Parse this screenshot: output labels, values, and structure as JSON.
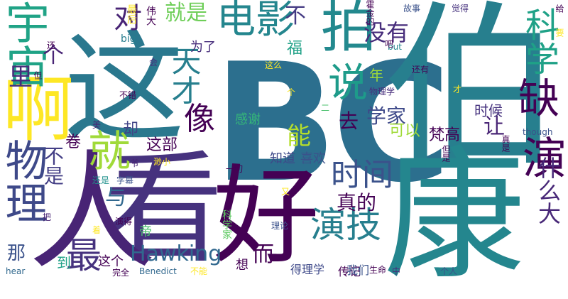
{
  "word_cloud": {
    "background": "#ffffff",
    "palette": [
      "#440154",
      "#46327e",
      "#365c8d",
      "#277f8e",
      "#1fa187",
      "#4ac16d",
      "#a0da39",
      "#fde725"
    ],
    "words": [
      {
        "id": "w1",
        "text": "BC",
        "color": "#2c6f8e"
      },
      {
        "id": "w2",
        "text": "伯",
        "color": "#277f8e"
      },
      {
        "id": "w3",
        "text": "康",
        "color": "#24868e"
      },
      {
        "id": "w4",
        "text": "看",
        "color": "#46327e"
      },
      {
        "id": "w5",
        "text": "好",
        "color": "#440154"
      },
      {
        "id": "w6",
        "text": "人",
        "color": "#482475"
      },
      {
        "id": "w7",
        "text": "这",
        "color": "#2a788e"
      },
      {
        "id": "w8",
        "text": "啊",
        "color": "#fde725"
      },
      {
        "id": "w9",
        "text": "物理",
        "color": "#3e4989"
      },
      {
        "id": "w10",
        "text": "宇宙",
        "color": "#20a386"
      },
      {
        "id": "w11",
        "text": "电影",
        "color": "#24868e"
      },
      {
        "id": "w12",
        "text": "拍",
        "color": "#23898e"
      },
      {
        "id": "w13",
        "text": "演技",
        "color": "#277f8e"
      },
      {
        "id": "w14",
        "text": "演",
        "color": "#440154"
      },
      {
        "id": "w15",
        "text": "缺",
        "color": "#440154"
      },
      {
        "id": "w16",
        "text": "科学",
        "color": "#1fa187"
      },
      {
        "id": "w17",
        "text": "就",
        "color": "#a0da39"
      },
      {
        "id": "w18",
        "text": "时间",
        "color": "#3b528b"
      },
      {
        "id": "w19",
        "text": "说",
        "color": "#1e9b8a"
      },
      {
        "id": "w20",
        "text": "Hawking",
        "color": "#31688e"
      },
      {
        "id": "w21",
        "text": "最",
        "color": "#46327e"
      },
      {
        "id": "w22",
        "text": "像",
        "color": "#440154"
      },
      {
        "id": "w23",
        "text": "天才",
        "color": "#277f8e"
      },
      {
        "id": "w24",
        "text": "对",
        "color": "#482475"
      },
      {
        "id": "w25",
        "text": "就是",
        "color": "#6ece58"
      },
      {
        "id": "w26",
        "text": "不",
        "color": "#443a83"
      },
      {
        "id": "w27",
        "text": "没有",
        "color": "#472d7b"
      },
      {
        "id": "w28",
        "text": "能",
        "color": "#b5de2b"
      },
      {
        "id": "w29",
        "text": "什么大",
        "color": "#482878"
      },
      {
        "id": "w30",
        "text": "让",
        "color": "#482475"
      },
      {
        "id": "w31",
        "text": "与",
        "color": "#31688e"
      },
      {
        "id": "w32",
        "text": "而",
        "color": "#440154"
      },
      {
        "id": "w33",
        "text": "真的",
        "color": "#440154"
      },
      {
        "id": "w34",
        "text": "学家",
        "color": "#3e4989"
      },
      {
        "id": "w35",
        "text": "去",
        "color": "#440154"
      },
      {
        "id": "w36",
        "text": "里",
        "color": "#472d7b"
      },
      {
        "id": "w37",
        "text": "个",
        "color": "#482475"
      },
      {
        "id": "w38",
        "text": "不是",
        "color": "#433e85"
      },
      {
        "id": "w39",
        "text": "那",
        "color": "#3b528b"
      },
      {
        "id": "w40",
        "text": "卷",
        "color": "#440154"
      },
      {
        "id": "w41",
        "text": "却",
        "color": "#414487"
      },
      {
        "id": "w42",
        "text": "这部",
        "color": "#440154"
      },
      {
        "id": "w43",
        "text": "感谢",
        "color": "#35b779"
      },
      {
        "id": "w44",
        "text": "可以",
        "color": "#a0da39"
      },
      {
        "id": "w45",
        "text": "梵高",
        "color": "#440154"
      },
      {
        "id": "w46",
        "text": "时候",
        "color": "#46327e"
      },
      {
        "id": "w47",
        "text": "福",
        "color": "#1fa187"
      },
      {
        "id": "w48",
        "text": "年",
        "color": "#a0da39"
      },
      {
        "id": "w49",
        "text": "知道",
        "color": "#3e4989"
      },
      {
        "id": "w50",
        "text": "喜欢",
        "color": "#3b528b"
      },
      {
        "id": "w51",
        "text": "为了",
        "color": "#472d7b"
      },
      {
        "id": "w52",
        "text": "伟大",
        "color": "#440154"
      },
      {
        "id": "w53",
        "text": "最后",
        "color": "#fde725"
      },
      {
        "id": "w54",
        "text": "big",
        "color": "#287d8e"
      },
      {
        "id": "w55",
        "text": "这个",
        "color": "#440154"
      },
      {
        "id": "w56",
        "text": "到",
        "color": "#1fa187"
      },
      {
        "id": "w57",
        "text": "传记",
        "color": "#440154"
      },
      {
        "id": "w58",
        "text": "我们",
        "color": "#3b528b"
      },
      {
        "id": "w59",
        "text": "得理学",
        "color": "#3e4989"
      },
      {
        "id": "w60",
        "text": "想",
        "color": "#440154"
      },
      {
        "id": "w61",
        "text": "帝",
        "color": "#4ac16d"
      },
      {
        "id": "w62",
        "text": "科学家",
        "color": "#5ec962"
      },
      {
        "id": "w63",
        "text": "物理学",
        "color": "#472d7b"
      },
      {
        "id": "w64",
        "text": "霍金的",
        "color": "#440154"
      },
      {
        "id": "w65",
        "text": "故事",
        "color": "#3b528b"
      },
      {
        "id": "w66",
        "text": "觉得",
        "color": "#46327e"
      },
      {
        "id": "w67",
        "text": "给",
        "color": "#440154"
      },
      {
        "id": "w68",
        "text": "要",
        "color": "#fde725"
      },
      {
        "id": "w69",
        "text": "还有",
        "color": "#440154"
      },
      {
        "id": "w70",
        "text": "but",
        "color": "#24868e"
      },
      {
        "id": "w71",
        "text": "though",
        "color": "#3b528b"
      },
      {
        "id": "w72",
        "text": "真是",
        "color": "#440154"
      },
      {
        "id": "w73",
        "text": "但是",
        "color": "#440154"
      },
      {
        "id": "w74",
        "text": "不错",
        "color": "#440154"
      },
      {
        "id": "w75",
        "text": "美",
        "color": "#482475"
      },
      {
        "id": "w76",
        "text": "还是",
        "color": "#21918c"
      },
      {
        "id": "w77",
        "text": "但",
        "color": "#440154"
      },
      {
        "id": "w78",
        "text": "还",
        "color": "#440154"
      },
      {
        "id": "w79",
        "text": "会",
        "color": "#472d7b"
      },
      {
        "id": "w80",
        "text": "这么",
        "color": "#fde725"
      },
      {
        "id": "w81",
        "text": "渺小",
        "color": "#fde725"
      },
      {
        "id": "w82",
        "text": "一切",
        "color": "#440154"
      },
      {
        "id": "w83",
        "text": "理论",
        "color": "#3b528b"
      },
      {
        "id": "w84",
        "text": "hear",
        "color": "#31688e"
      },
      {
        "id": "w85",
        "text": "完全",
        "color": "#440154"
      },
      {
        "id": "w86",
        "text": "Benedict",
        "color": "#31688e"
      },
      {
        "id": "w87",
        "text": "不能",
        "color": "#fde725"
      },
      {
        "id": "w88",
        "text": "生命",
        "color": "#440154"
      },
      {
        "id": "w89",
        "text": "中",
        "color": "#472d7b"
      },
      {
        "id": "w90",
        "text": "个人",
        "color": "#3b528b"
      },
      {
        "id": "w91",
        "text": "把",
        "color": "#482475"
      },
      {
        "id": "w92",
        "text": "着",
        "color": "#fde725"
      },
      {
        "id": "w93",
        "text": "演得",
        "color": "#440154"
      },
      {
        "id": "w94",
        "text": "字幕",
        "color": "#3b528b"
      },
      {
        "id": "w95",
        "text": "爷",
        "color": "#482475"
      },
      {
        "id": "w96",
        "text": "又",
        "color": "#fde725"
      },
      {
        "id": "w97",
        "text": "二",
        "color": "#4ac16d"
      },
      {
        "id": "w98",
        "text": "个",
        "color": "#fde725"
      },
      {
        "id": "w99",
        "text": "才",
        "color": "#fde725"
      },
      {
        "id": "w100",
        "text": "吧",
        "color": "#440154"
      }
    ]
  }
}
